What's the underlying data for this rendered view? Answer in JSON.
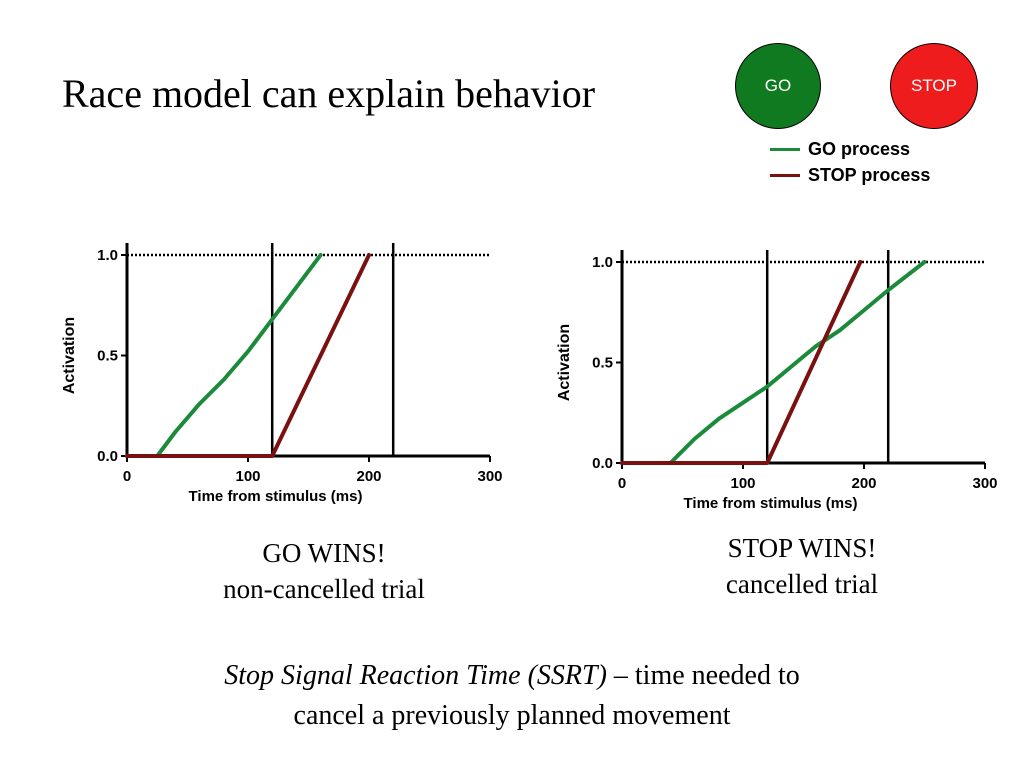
{
  "title": "Race model can explain behavior",
  "signals": {
    "go": {
      "label": "GO",
      "color": "#0f7a1f"
    },
    "stop": {
      "label": "STOP",
      "color": "#ee1c1c"
    }
  },
  "legend": [
    {
      "label": "GO process",
      "color": "#1b8a3a"
    },
    {
      "label": "STOP process",
      "color": "#7a1010"
    }
  ],
  "chart_data": [
    {
      "type": "line",
      "xlabel": "Time from stimulus (ms)",
      "ylabel": "Activation",
      "xlim": [
        0,
        300
      ],
      "ylim": [
        0,
        1.0
      ],
      "xticks": [
        0,
        100,
        200,
        300
      ],
      "yticks": [
        0.0,
        0.5,
        1.0
      ],
      "ytick_labels": [
        "0.0",
        "0.5",
        "1.0"
      ],
      "threshold": 1.0,
      "vlines": [
        120,
        220
      ],
      "series": [
        {
          "name": "GO process",
          "color": "#1b8a3a",
          "x": [
            0,
            25,
            40,
            60,
            80,
            100,
            120,
            140,
            160
          ],
          "y": [
            0,
            0,
            0.12,
            0.26,
            0.38,
            0.52,
            0.68,
            0.84,
            1.0
          ]
        },
        {
          "name": "STOP process",
          "color": "#7a1010",
          "x": [
            0,
            120,
            200
          ],
          "y": [
            0,
            0,
            1.0
          ]
        }
      ]
    },
    {
      "type": "line",
      "xlabel": "Time from stimulus (ms)",
      "ylabel": "Activation",
      "xlim": [
        0,
        300
      ],
      "ylim": [
        0,
        1.0
      ],
      "xticks": [
        0,
        100,
        200,
        300
      ],
      "yticks": [
        0.0,
        0.5,
        1.0
      ],
      "ytick_labels": [
        "0.0",
        "0.5",
        "1.0"
      ],
      "threshold": 1.0,
      "vlines": [
        120,
        220
      ],
      "series": [
        {
          "name": "GO process",
          "color": "#1b8a3a",
          "x": [
            0,
            40,
            60,
            80,
            100,
            120,
            140,
            160,
            180,
            200,
            220,
            250
          ],
          "y": [
            0,
            0,
            0.12,
            0.22,
            0.3,
            0.38,
            0.48,
            0.58,
            0.66,
            0.76,
            0.86,
            1.0
          ]
        },
        {
          "name": "STOP process",
          "color": "#7a1010",
          "x": [
            0,
            120,
            197
          ],
          "y": [
            0,
            0,
            1.0
          ]
        }
      ]
    }
  ],
  "captions": [
    {
      "line1": "GO WINS!",
      "line2": "non-cancelled trial"
    },
    {
      "line1": "STOP WINS!",
      "line2": "cancelled trial"
    }
  ],
  "footer": {
    "term": "Stop Signal Reaction Time (SSRT)",
    "rest1": " – time needed to",
    "line2": "cancel a previously planned movement"
  }
}
